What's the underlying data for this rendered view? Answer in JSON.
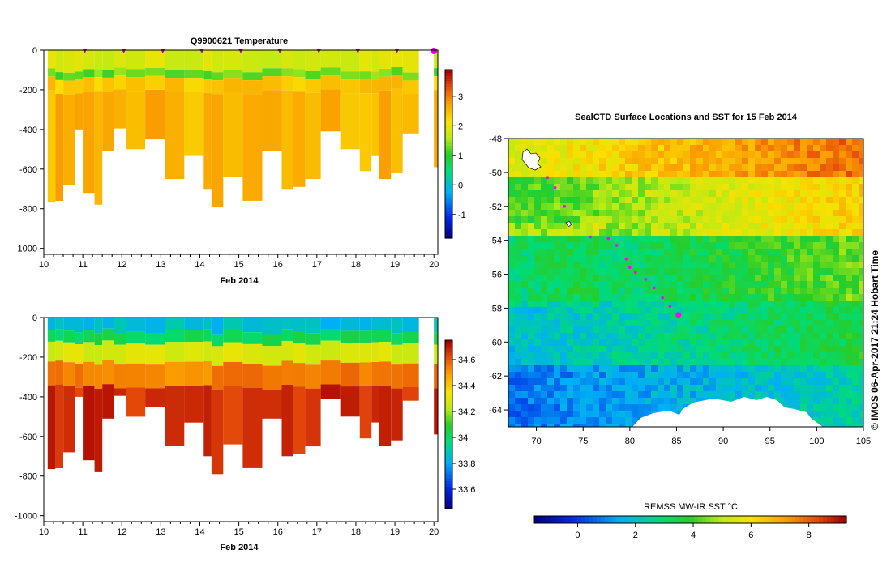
{
  "chart_data": [
    {
      "id": "temperature-section",
      "type": "heatmap",
      "title": "Q9900621  Temperature",
      "xlabel": "Feb 2014",
      "ylabel": "",
      "xlim": [
        10,
        20.1
      ],
      "ylim": [
        -1030,
        0
      ],
      "x_ticks": [
        "10",
        "11",
        "12",
        "13",
        "14",
        "15",
        "16",
        "17",
        "18",
        "19",
        "20"
      ],
      "y_ticks": [
        "0",
        "-200",
        "-400",
        "-600",
        "-800",
        "-1000"
      ],
      "profile_markers_days": [
        11,
        12,
        13,
        14,
        15,
        16,
        17,
        18,
        19
      ],
      "latest_marker_day": 20,
      "colorbar": {
        "min": -1.8,
        "max": 3.9,
        "ticks": [
          "-1",
          "0",
          "1",
          "2",
          "3"
        ]
      },
      "profiles": [
        {
          "day": 10.1,
          "max_depth": 765
        },
        {
          "day": 10.3,
          "max_depth": 760
        },
        {
          "day": 10.5,
          "max_depth": 680
        },
        {
          "day": 10.8,
          "max_depth": 400
        },
        {
          "day": 11.0,
          "max_depth": 720
        },
        {
          "day": 11.3,
          "max_depth": 780
        },
        {
          "day": 11.5,
          "max_depth": 510
        },
        {
          "day": 11.8,
          "max_depth": 395
        },
        {
          "day": 12.1,
          "max_depth": 500
        },
        {
          "day": 12.6,
          "max_depth": 450
        },
        {
          "day": 13.1,
          "max_depth": 650
        },
        {
          "day": 13.6,
          "max_depth": 530
        },
        {
          "day": 14.1,
          "max_depth": 700
        },
        {
          "day": 14.3,
          "max_depth": 790
        },
        {
          "day": 14.6,
          "max_depth": 640
        },
        {
          "day": 15.1,
          "max_depth": 760
        },
        {
          "day": 15.6,
          "max_depth": 510
        },
        {
          "day": 16.1,
          "max_depth": 700
        },
        {
          "day": 16.4,
          "max_depth": 690
        },
        {
          "day": 16.7,
          "max_depth": 650
        },
        {
          "day": 17.1,
          "max_depth": 410
        },
        {
          "day": 17.6,
          "max_depth": 500
        },
        {
          "day": 18.1,
          "max_depth": 610
        },
        {
          "day": 18.4,
          "max_depth": 530
        },
        {
          "day": 18.6,
          "max_depth": 650
        },
        {
          "day": 18.9,
          "max_depth": 620
        },
        {
          "day": 19.2,
          "max_depth": 420
        },
        {
          "day": 20.0,
          "max_depth": 590
        }
      ],
      "layers": [
        {
          "top": 0,
          "bottom": 100,
          "value": 1.85
        },
        {
          "top": 100,
          "bottom": 140,
          "value": 1.3
        },
        {
          "top": 140,
          "bottom": 210,
          "value": 2.4
        },
        {
          "top": 210,
          "bottom": 2000,
          "value": 2.6
        }
      ]
    },
    {
      "id": "salinity-section",
      "type": "heatmap",
      "title": "",
      "xlabel": "Feb 2014",
      "ylabel": "",
      "xlim": [
        10,
        20.1
      ],
      "ylim": [
        -1030,
        0
      ],
      "x_ticks": [
        "10",
        "11",
        "12",
        "13",
        "14",
        "15",
        "16",
        "17",
        "18",
        "19",
        "20"
      ],
      "y_ticks": [
        "0",
        "-200",
        "-400",
        "-600",
        "-800",
        "-1000"
      ],
      "colorbar": {
        "min": 33.45,
        "max": 34.75,
        "ticks": [
          "33.6",
          "33.8",
          "34",
          "34.2",
          "34.4",
          "34.6"
        ]
      },
      "profiles": [
        {
          "day": 10.1,
          "max_depth": 765
        },
        {
          "day": 10.3,
          "max_depth": 760
        },
        {
          "day": 10.5,
          "max_depth": 680
        },
        {
          "day": 10.8,
          "max_depth": 400
        },
        {
          "day": 11.0,
          "max_depth": 720
        },
        {
          "day": 11.3,
          "max_depth": 780
        },
        {
          "day": 11.5,
          "max_depth": 510
        },
        {
          "day": 11.8,
          "max_depth": 395
        },
        {
          "day": 12.1,
          "max_depth": 500
        },
        {
          "day": 12.6,
          "max_depth": 450
        },
        {
          "day": 13.1,
          "max_depth": 650
        },
        {
          "day": 13.6,
          "max_depth": 530
        },
        {
          "day": 14.1,
          "max_depth": 700
        },
        {
          "day": 14.3,
          "max_depth": 790
        },
        {
          "day": 14.6,
          "max_depth": 640
        },
        {
          "day": 15.1,
          "max_depth": 760
        },
        {
          "day": 15.6,
          "max_depth": 510
        },
        {
          "day": 16.1,
          "max_depth": 700
        },
        {
          "day": 16.4,
          "max_depth": 690
        },
        {
          "day": 16.7,
          "max_depth": 650
        },
        {
          "day": 17.1,
          "max_depth": 410
        },
        {
          "day": 17.6,
          "max_depth": 500
        },
        {
          "day": 18.1,
          "max_depth": 610
        },
        {
          "day": 18.4,
          "max_depth": 530
        },
        {
          "day": 18.6,
          "max_depth": 650
        },
        {
          "day": 18.9,
          "max_depth": 620
        },
        {
          "day": 19.2,
          "max_depth": 420
        },
        {
          "day": 20.0,
          "max_depth": 590
        }
      ],
      "layers": [
        {
          "top": 0,
          "bottom": 70,
          "value": 33.85
        },
        {
          "top": 70,
          "bottom": 130,
          "value": 34.02
        },
        {
          "top": 130,
          "bottom": 230,
          "value": 34.3
        },
        {
          "top": 230,
          "bottom": 350,
          "value": 34.55
        },
        {
          "top": 350,
          "bottom": 2000,
          "value": 34.68
        }
      ]
    },
    {
      "id": "sst-map",
      "type": "heatmap",
      "title": "SealCTD Surface Locations and SST for 15 Feb 2014",
      "xlabel": "",
      "ylabel": "",
      "xlim": [
        67,
        105
      ],
      "ylim": [
        -65,
        -48
      ],
      "x_ticks": [
        "70",
        "75",
        "80",
        "85",
        "90",
        "95",
        "100",
        "105"
      ],
      "y_ticks": [
        "-48",
        "-50",
        "-52",
        "-54",
        "-56",
        "-58",
        "-60",
        "-62",
        "-64"
      ],
      "colorbar": {
        "label": "REMSS MW-IR SST °C",
        "min": -1.5,
        "max": 9.3,
        "ticks": [
          "0",
          "2",
          "4",
          "6",
          "8"
        ]
      },
      "track": [
        {
          "lon": 71.2,
          "lat": -50.3
        },
        {
          "lon": 72.0,
          "lat": -50.9
        },
        {
          "lon": 73.0,
          "lat": -52.0
        },
        {
          "lon": 75.8,
          "lat": -53.8
        },
        {
          "lon": 77.7,
          "lat": -53.9
        },
        {
          "lon": 78.6,
          "lat": -54.3
        },
        {
          "lon": 79.6,
          "lat": -55.1
        },
        {
          "lon": 80.0,
          "lat": -55.6
        },
        {
          "lon": 80.6,
          "lat": -55.9
        },
        {
          "lon": 81.7,
          "lat": -56.3
        },
        {
          "lon": 82.6,
          "lat": -56.8
        },
        {
          "lon": 83.5,
          "lat": -57.4
        },
        {
          "lon": 84.3,
          "lat": -57.9
        }
      ],
      "latest_position": {
        "lon": 85.2,
        "lat": -58.4
      },
      "sst_bands": [
        {
          "lat_top": -48.0,
          "lat_bottom": -50.3,
          "value_west": 5.5,
          "value_east": 8.0
        },
        {
          "lat_top": -50.3,
          "lat_bottom": -53.6,
          "value_west": 4.0,
          "value_east": 6.4
        },
        {
          "lat_top": -53.6,
          "lat_bottom": -57.6,
          "value_west": 2.4,
          "value_east": 4.4
        },
        {
          "lat_top": -57.6,
          "lat_bottom": -61.5,
          "value_west": 1.8,
          "value_east": 3.6
        },
        {
          "lat_top": -61.5,
          "lat_bottom": -65.0,
          "value_west": 0.7,
          "value_east": 2.4
        }
      ],
      "credit": "© IMOS 06-Apr-2017 21:24 Hobart Time"
    }
  ]
}
